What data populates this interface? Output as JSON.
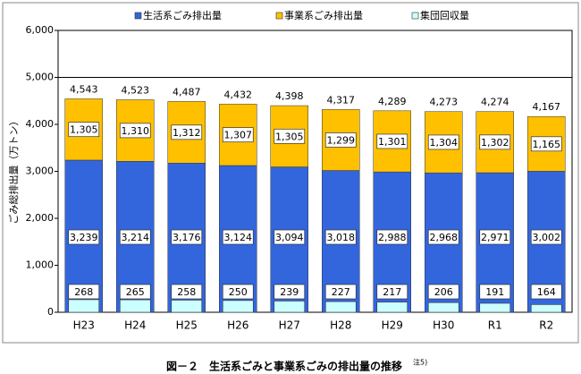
{
  "chart_data": {
    "type": "bar",
    "caption": "図－２　生活系ごみと事業系ごみの排出量の推移",
    "caption_note": "注5)",
    "y_axis_label": "ごみ総排出量（万トン）",
    "categories": [
      "H23",
      "H24",
      "H25",
      "H26",
      "H27",
      "H28",
      "H29",
      "H30",
      "R1",
      "R2"
    ],
    "series": [
      {
        "name": "生活系ごみ排出量",
        "color": "#3366dd",
        "values": [
          3239,
          3214,
          3176,
          3124,
          3094,
          3018,
          2988,
          2968,
          2971,
          3002
        ],
        "value_labels": [
          "3,239",
          "3,214",
          "3,176",
          "3,124",
          "3,094",
          "3,018",
          "2,988",
          "2,968",
          "2,971",
          "3,002"
        ]
      },
      {
        "name": "事業系ごみ排出量",
        "color": "#ffc000",
        "values": [
          1305,
          1310,
          1312,
          1307,
          1305,
          1299,
          1301,
          1304,
          1302,
          1165
        ],
        "value_labels": [
          "1,305",
          "1,310",
          "1,312",
          "1,307",
          "1,305",
          "1,299",
          "1,301",
          "1,304",
          "1,302",
          "1,165"
        ]
      },
      {
        "name": "集団回収量",
        "color": "#ccffff",
        "values": [
          268,
          265,
          258,
          250,
          239,
          227,
          217,
          206,
          191,
          164
        ]
      }
    ],
    "totals": [
      4543,
      4523,
      4487,
      4432,
      4398,
      4317,
      4289,
      4273,
      4274,
      4167
    ],
    "total_labels": [
      "4,543",
      "4,523",
      "4,487",
      "4,432",
      "4,398",
      "4,317",
      "4,289",
      "4,273",
      "4,274",
      "4,167"
    ],
    "ylim": [
      0,
      6000
    ],
    "yticks": [
      0,
      {
        "value": 1000,
        "label": "1,000"
      },
      {
        "value": 2000,
        "label": "2,000"
      },
      {
        "value": 3000,
        "label": "3,000"
      },
      {
        "value": 4000,
        "label": "4,000"
      },
      {
        "value": 5000,
        "label": "5,000"
      },
      {
        "value": 6000,
        "label": "6,000"
      }
    ],
    "reference_line": 5000,
    "legend": "top"
  }
}
